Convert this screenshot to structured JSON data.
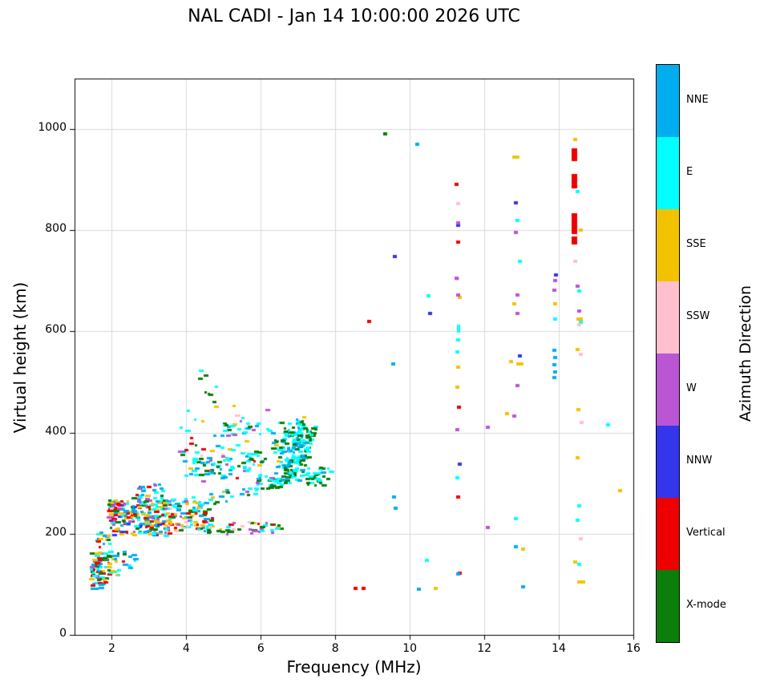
{
  "title": "NAL CADI - Jan 14 10:00:00 2026 UTC",
  "chart_data": {
    "type": "scatter",
    "title": "NAL CADI - Jan 14 10:00:00 2026 UTC",
    "xlabel": "Frequency (MHz)",
    "ylabel": "Virtual height (km)",
    "legend_title": "Azimuth Direction",
    "xlim": [
      1,
      16
    ],
    "ylim": [
      0,
      1100
    ],
    "xticks": [
      2,
      4,
      6,
      8,
      10,
      12,
      14,
      16
    ],
    "yticks": [
      0,
      200,
      400,
      600,
      800,
      1000
    ],
    "grid": true,
    "legend_position": "right-colorbar",
    "categories": [
      {
        "label": "NNE",
        "color": "#00AEEF"
      },
      {
        "label": "E",
        "color": "#00FFFF"
      },
      {
        "label": "SSE",
        "color": "#F2C200"
      },
      {
        "label": "SSW",
        "color": "#FFC0CB"
      },
      {
        "label": "W",
        "color": "#BA55D3"
      },
      {
        "label": "NNW",
        "color": "#3535EC"
      },
      {
        "label": "Vertical",
        "color": "#EE0000"
      },
      {
        "label": "X-mode",
        "color": "#0B7E0B"
      }
    ],
    "points": [
      [
        8.55,
        92,
        6
      ],
      [
        8.75,
        92,
        6
      ],
      [
        8.9,
        620,
        6
      ],
      [
        11.25,
        890,
        6
      ],
      [
        11.3,
        776,
        6
      ],
      [
        11.32,
        450,
        6
      ],
      [
        11.3,
        273,
        6
      ],
      [
        11.33,
        122,
        6
      ],
      [
        14.42,
        950,
        6,
        7,
        16
      ],
      [
        14.42,
        897,
        6,
        7,
        18
      ],
      [
        14.42,
        813,
        6,
        7,
        26
      ],
      [
        14.42,
        780,
        6,
        7,
        10
      ],
      [
        9.35,
        990,
        7
      ],
      [
        9.6,
        748,
        5
      ],
      [
        10.55,
        635,
        5
      ],
      [
        11.3,
        810,
        5
      ],
      [
        11.35,
        338,
        5
      ],
      [
        12.85,
        855,
        5
      ],
      [
        12.95,
        552,
        5
      ],
      [
        13.92,
        712,
        5
      ],
      [
        9.55,
        535,
        0
      ],
      [
        9.58,
        273,
        0
      ],
      [
        9.62,
        250,
        0
      ],
      [
        10.2,
        970,
        0
      ],
      [
        10.25,
        90,
        0
      ],
      [
        11.3,
        120,
        0
      ],
      [
        12.85,
        175,
        0
      ],
      [
        13.05,
        95,
        0
      ],
      [
        13.87,
        562,
        0
      ],
      [
        13.9,
        548,
        0
      ],
      [
        13.88,
        534,
        0
      ],
      [
        13.91,
        520,
        0
      ],
      [
        13.89,
        508,
        0
      ],
      [
        10.5,
        670,
        1
      ],
      [
        10.45,
        148,
        1
      ],
      [
        11.3,
        605,
        1,
        4,
        10
      ],
      [
        11.3,
        583,
        1
      ],
      [
        11.28,
        560,
        1
      ],
      [
        11.27,
        310,
        1
      ],
      [
        12.9,
        820,
        1
      ],
      [
        12.95,
        738,
        1
      ],
      [
        12.85,
        230,
        1
      ],
      [
        13.9,
        625,
        1
      ],
      [
        14.5,
        876,
        1
      ],
      [
        14.55,
        680,
        1
      ],
      [
        14.6,
        618,
        1
      ],
      [
        14.55,
        255,
        1
      ],
      [
        14.5,
        226,
        1
      ],
      [
        14.55,
        140,
        1
      ],
      [
        15.32,
        415,
        1
      ],
      [
        10.7,
        92,
        2
      ],
      [
        11.35,
        668,
        2
      ],
      [
        11.3,
        530,
        2
      ],
      [
        11.28,
        490,
        2
      ],
      [
        12.85,
        945,
        2,
        9,
        4
      ],
      [
        12.8,
        655,
        2
      ],
      [
        12.95,
        535,
        2,
        9,
        4
      ],
      [
        12.72,
        540,
        2
      ],
      [
        13.05,
        170,
        2
      ],
      [
        13.9,
        655,
        2
      ],
      [
        14.45,
        980,
        2
      ],
      [
        14.6,
        800,
        2
      ],
      [
        14.55,
        625,
        2,
        8,
        4
      ],
      [
        14.5,
        565,
        2
      ],
      [
        14.52,
        445,
        2
      ],
      [
        14.5,
        350,
        2
      ],
      [
        14.45,
        145,
        2
      ],
      [
        14.6,
        105,
        2,
        10,
        4
      ],
      [
        15.65,
        285,
        2
      ],
      [
        12.6,
        437,
        2
      ],
      [
        11.3,
        853,
        3
      ],
      [
        11.28,
        703,
        3
      ],
      [
        14.55,
        613,
        3
      ],
      [
        14.6,
        555,
        3
      ],
      [
        14.62,
        420,
        3
      ],
      [
        14.6,
        190,
        3
      ],
      [
        14.45,
        738,
        3
      ],
      [
        11.3,
        815,
        4
      ],
      [
        11.25,
        705,
        4
      ],
      [
        11.3,
        672,
        4
      ],
      [
        11.28,
        405,
        4
      ],
      [
        12.85,
        795,
        4
      ],
      [
        12.9,
        672,
        4
      ],
      [
        12.88,
        635,
        4
      ],
      [
        12.9,
        493,
        4
      ],
      [
        12.8,
        433,
        4
      ],
      [
        12.1,
        411,
        4
      ],
      [
        12.1,
        212,
        4
      ],
      [
        13.9,
        700,
        4
      ],
      [
        13.88,
        682,
        4
      ],
      [
        14.5,
        690,
        4
      ],
      [
        14.55,
        640,
        4
      ]
    ],
    "clusters": [
      {
        "type": "blob",
        "f": [
          1.45,
          1.95
        ],
        "h": [
          100,
          162
        ],
        "n": 70,
        "mix": [
          [
            6,
            0.28
          ],
          [
            1,
            0.2
          ],
          [
            0,
            0.18
          ],
          [
            2,
            0.16
          ],
          [
            7,
            0.1
          ],
          [
            4,
            0.08
          ]
        ]
      },
      {
        "type": "blob",
        "f": [
          1.9,
          2.65
        ],
        "h": [
          118,
          165
        ],
        "n": 26,
        "mix": [
          [
            1,
            0.3
          ],
          [
            0,
            0.25
          ],
          [
            2,
            0.2
          ],
          [
            6,
            0.15
          ],
          [
            7,
            0.1
          ]
        ]
      },
      {
        "type": "blob",
        "f": [
          1.45,
          1.75
        ],
        "h": [
          88,
          102
        ],
        "n": 6,
        "mix": [
          [
            0,
            0.5
          ],
          [
            1,
            0.3
          ],
          [
            6,
            0.2
          ]
        ]
      },
      {
        "type": "blob",
        "f": [
          1.5,
          2.0
        ],
        "h": [
          162,
          205
        ],
        "n": 18,
        "mix": [
          [
            0,
            0.3
          ],
          [
            1,
            0.25
          ],
          [
            6,
            0.2
          ],
          [
            2,
            0.15
          ],
          [
            7,
            0.1
          ]
        ]
      },
      {
        "type": "blob",
        "f": [
          1.9,
          3.6
        ],
        "h": [
          196,
          266
        ],
        "n": 240,
        "mix": [
          [
            6,
            0.2
          ],
          [
            1,
            0.17
          ],
          [
            0,
            0.14
          ],
          [
            2,
            0.14
          ],
          [
            7,
            0.13
          ],
          [
            4,
            0.1
          ],
          [
            5,
            0.06
          ],
          [
            3,
            0.06
          ]
        ]
      },
      {
        "type": "blob",
        "f": [
          3.5,
          4.7
        ],
        "h": [
          205,
          255
        ],
        "n": 70,
        "mix": [
          [
            6,
            0.18
          ],
          [
            1,
            0.18
          ],
          [
            0,
            0.15
          ],
          [
            2,
            0.15
          ],
          [
            7,
            0.15
          ],
          [
            4,
            0.12
          ],
          [
            3,
            0.07
          ]
        ]
      },
      {
        "type": "blob",
        "f": [
          2.6,
          3.4
        ],
        "h": [
          258,
          300
        ],
        "n": 30,
        "mix": [
          [
            1,
            0.3
          ],
          [
            0,
            0.2
          ],
          [
            6,
            0.15
          ],
          [
            7,
            0.15
          ],
          [
            4,
            0.1
          ],
          [
            2,
            0.1
          ]
        ]
      },
      {
        "type": "blob",
        "f": [
          4.6,
          6.6
        ],
        "h": [
          197,
          222
        ],
        "n": 45,
        "mix": [
          [
            7,
            0.35
          ],
          [
            4,
            0.22
          ],
          [
            2,
            0.15
          ],
          [
            1,
            0.12
          ],
          [
            6,
            0.08
          ],
          [
            3,
            0.08
          ]
        ]
      },
      {
        "type": "arc",
        "path": [
          [
            3.3,
            258
          ],
          [
            4.2,
            262
          ],
          [
            5.0,
            272
          ],
          [
            5.8,
            292
          ],
          [
            6.4,
            322
          ],
          [
            6.9,
            358
          ],
          [
            7.15,
            400
          ]
        ],
        "n": 110,
        "jitter": 14,
        "mix": [
          [
            1,
            0.42
          ],
          [
            0,
            0.25
          ],
          [
            7,
            0.18
          ],
          [
            2,
            0.08
          ],
          [
            4,
            0.07
          ]
        ]
      },
      {
        "type": "arc",
        "path": [
          [
            4.0,
            330
          ],
          [
            4.8,
            328
          ],
          [
            5.6,
            340
          ],
          [
            6.3,
            365
          ],
          [
            6.8,
            398
          ],
          [
            7.2,
            420
          ]
        ],
        "n": 85,
        "jitter": 16,
        "mix": [
          [
            1,
            0.38
          ],
          [
            7,
            0.3
          ],
          [
            0,
            0.18
          ],
          [
            4,
            0.08
          ],
          [
            2,
            0.06
          ]
        ]
      },
      {
        "type": "arc",
        "path": [
          [
            6.15,
            288
          ],
          [
            6.7,
            308
          ],
          [
            7.05,
            342
          ],
          [
            7.3,
            385
          ],
          [
            7.45,
            415
          ]
        ],
        "n": 70,
        "jitter": 8,
        "mix": [
          [
            7,
            0.65
          ],
          [
            1,
            0.35
          ]
        ]
      },
      {
        "type": "blob",
        "f": [
          7.25,
          7.9
        ],
        "h": [
          295,
          330
        ],
        "n": 30,
        "mix": [
          [
            7,
            0.45
          ],
          [
            1,
            0.4
          ],
          [
            0,
            0.15
          ]
        ]
      },
      {
        "type": "blob",
        "f": [
          3.8,
          6.2
        ],
        "h": [
          300,
          455
        ],
        "n": 70,
        "mix": [
          [
            1,
            0.28
          ],
          [
            0,
            0.2
          ],
          [
            4,
            0.15
          ],
          [
            2,
            0.12
          ],
          [
            7,
            0.13
          ],
          [
            6,
            0.06
          ],
          [
            3,
            0.06
          ]
        ]
      },
      {
        "type": "blob",
        "f": [
          4.35,
          4.85
        ],
        "h": [
          455,
          525
        ],
        "n": 8,
        "mix": [
          [
            7,
            0.8
          ],
          [
            1,
            0.2
          ]
        ]
      },
      {
        "type": "blob",
        "f": [
          6.5,
          7.3
        ],
        "h": [
          300,
          420
        ],
        "n": 80,
        "mix": [
          [
            1,
            0.5
          ],
          [
            0,
            0.22
          ],
          [
            7,
            0.28
          ]
        ]
      },
      {
        "type": "blob",
        "f": [
          5.0,
          6.35
        ],
        "h": [
          398,
          425
        ],
        "n": 18,
        "mix": [
          [
            1,
            0.4
          ],
          [
            0,
            0.25
          ],
          [
            4,
            0.15
          ],
          [
            2,
            0.1
          ],
          [
            7,
            0.1
          ]
        ]
      }
    ]
  }
}
